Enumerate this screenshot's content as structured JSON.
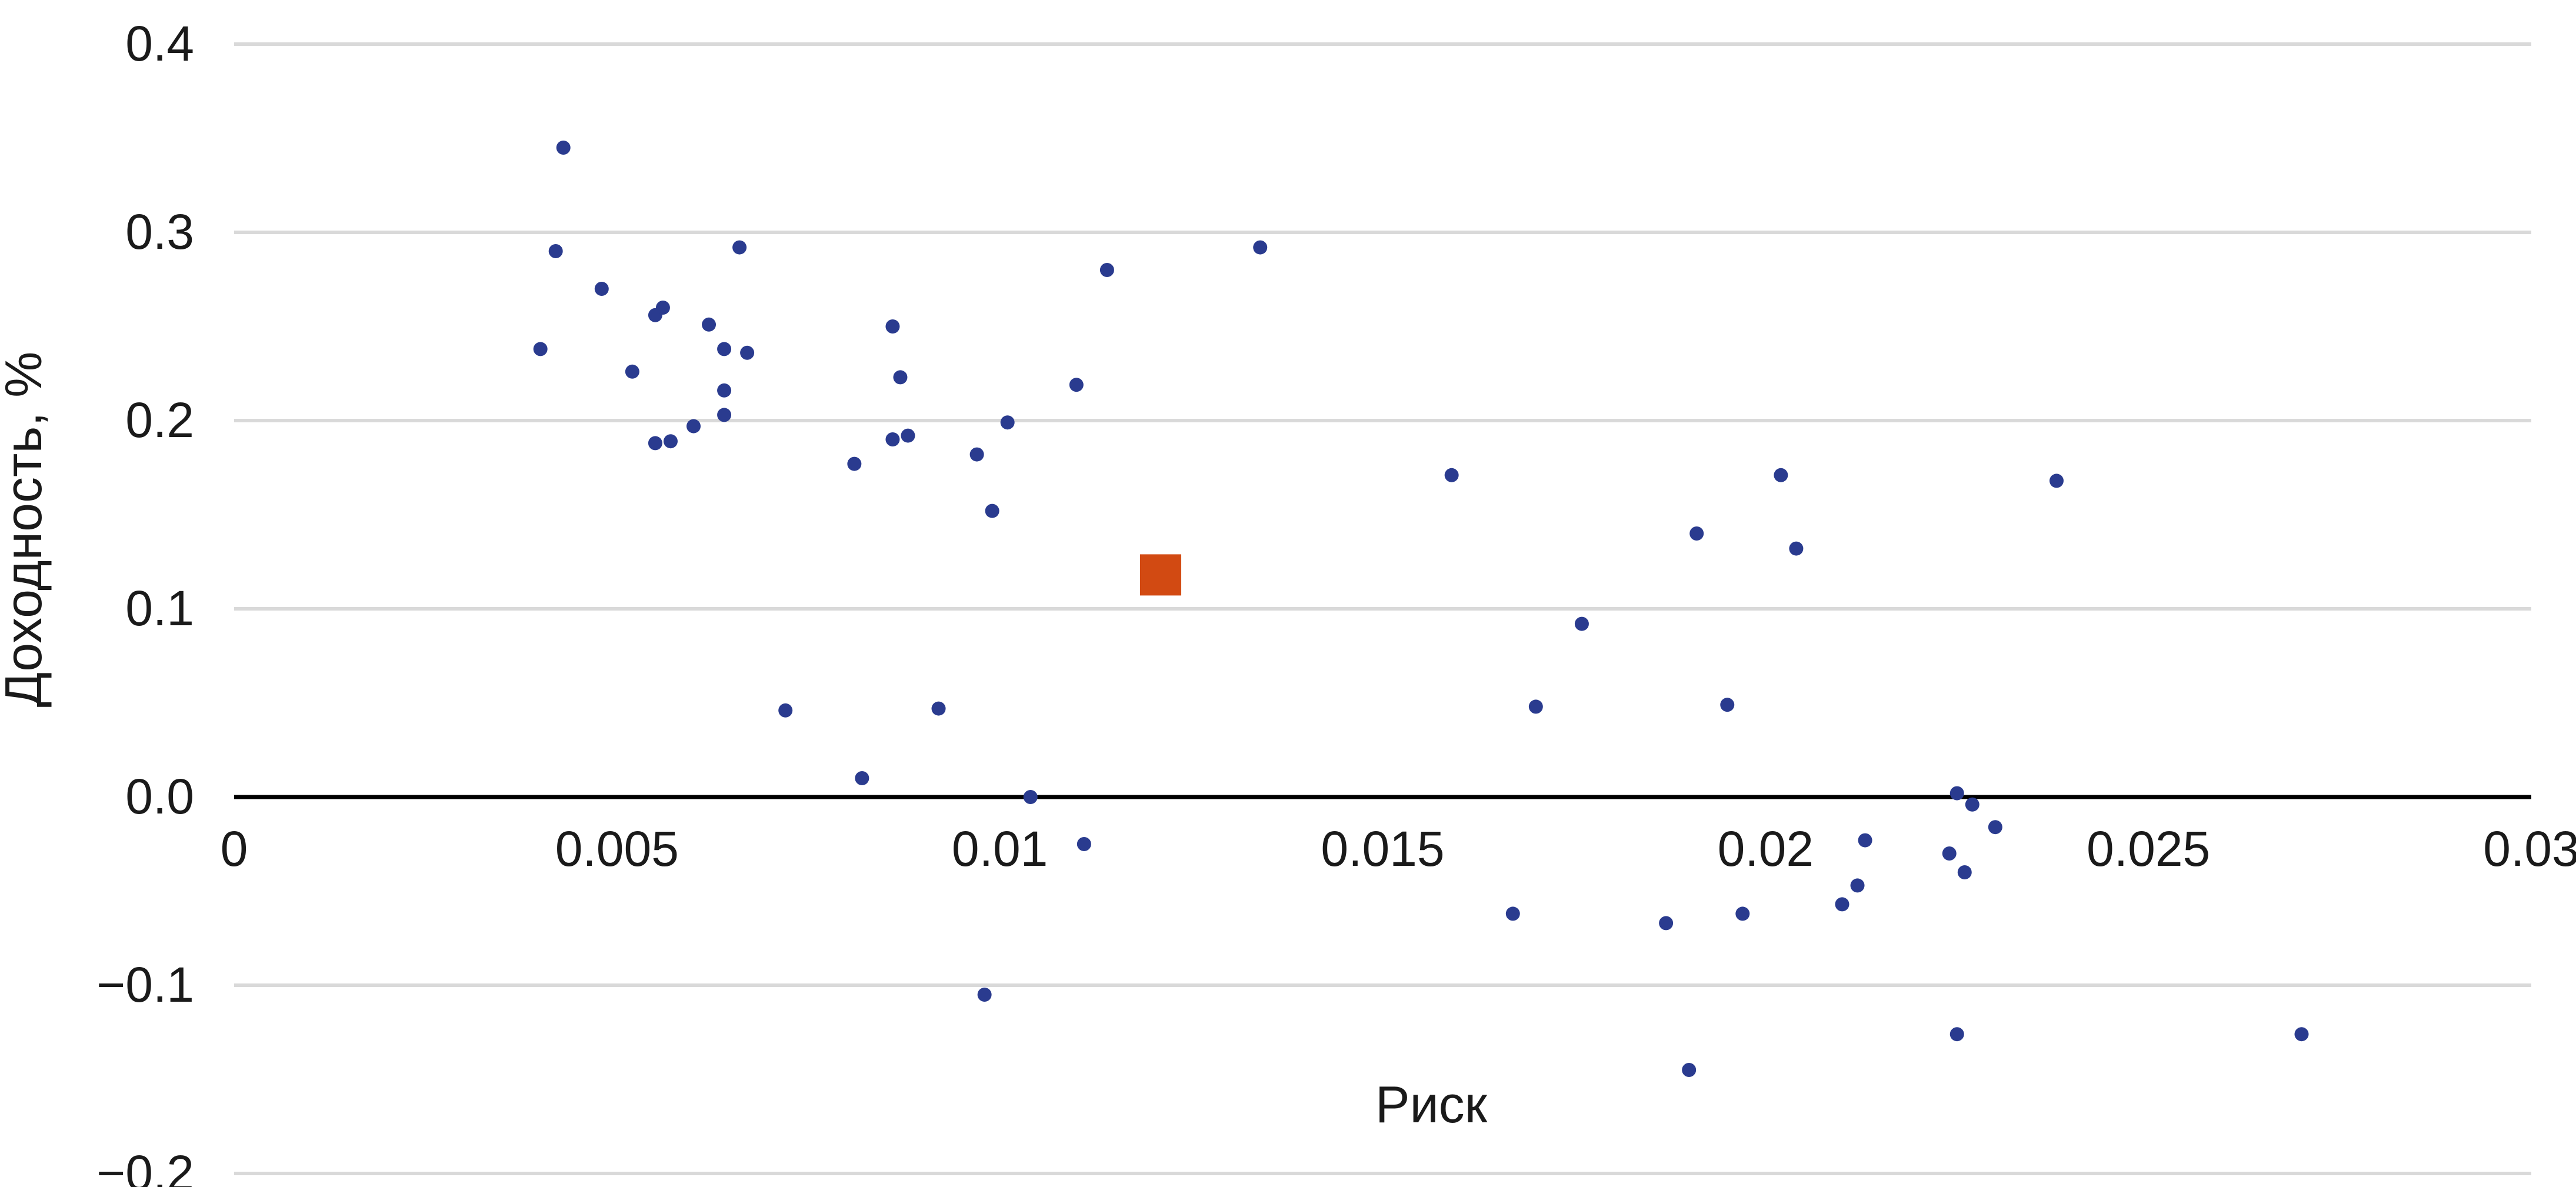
{
  "chart_data": {
    "type": "scatter",
    "xlabel": "Риск",
    "ylabel": "Доходность, %",
    "xlim": [
      0,
      0.03
    ],
    "ylim": [
      -0.2,
      0.4
    ],
    "x_ticks": [
      "0",
      "0.005",
      "0.01",
      "0.015",
      "0.02",
      "0.025",
      "0.03"
    ],
    "y_ticks": [
      "0.4",
      "0.3",
      "0.2",
      "0.1",
      "0.0",
      "−0.1",
      "−0.2"
    ],
    "x_tick_values": [
      0,
      0.005,
      0.01,
      0.015,
      0.02,
      0.025,
      0.03
    ],
    "y_tick_values": [
      0.4,
      0.3,
      0.2,
      0.1,
      0.0,
      -0.1,
      -0.2
    ],
    "grid": true,
    "colors": {
      "points": "#2a3b8f",
      "highlight": "#d24a12",
      "grid": "#d9d9d9",
      "zero_line": "#000000"
    },
    "series": [
      {
        "marker": "circle",
        "points": [
          {
            "x": 0.0043,
            "y": 0.345
          },
          {
            "x": 0.0042,
            "y": 0.29
          },
          {
            "x": 0.0048,
            "y": 0.27
          },
          {
            "x": 0.0055,
            "y": 0.256
          },
          {
            "x": 0.0056,
            "y": 0.26
          },
          {
            "x": 0.004,
            "y": 0.238
          },
          {
            "x": 0.0052,
            "y": 0.226
          },
          {
            "x": 0.0055,
            "y": 0.188
          },
          {
            "x": 0.0057,
            "y": 0.189
          },
          {
            "x": 0.006,
            "y": 0.197
          },
          {
            "x": 0.0062,
            "y": 0.251
          },
          {
            "x": 0.0064,
            "y": 0.238
          },
          {
            "x": 0.0066,
            "y": 0.292
          },
          {
            "x": 0.0067,
            "y": 0.236
          },
          {
            "x": 0.0064,
            "y": 0.216
          },
          {
            "x": 0.0064,
            "y": 0.203
          },
          {
            "x": 0.0072,
            "y": 0.046
          },
          {
            "x": 0.0081,
            "y": 0.177
          },
          {
            "x": 0.0086,
            "y": 0.25
          },
          {
            "x": 0.0087,
            "y": 0.223
          },
          {
            "x": 0.0086,
            "y": 0.19
          },
          {
            "x": 0.0088,
            "y": 0.192
          },
          {
            "x": 0.0082,
            "y": 0.01
          },
          {
            "x": 0.0092,
            "y": 0.047
          },
          {
            "x": 0.0097,
            "y": 0.182
          },
          {
            "x": 0.0101,
            "y": 0.199
          },
          {
            "x": 0.0099,
            "y": 0.152
          },
          {
            "x": 0.011,
            "y": 0.219
          },
          {
            "x": 0.0114,
            "y": 0.28
          },
          {
            "x": 0.0134,
            "y": 0.292
          },
          {
            "x": 0.0104,
            "y": 0.0
          },
          {
            "x": 0.0111,
            "y": -0.025
          },
          {
            "x": 0.0098,
            "y": -0.105
          },
          {
            "x": 0.0159,
            "y": 0.171
          },
          {
            "x": 0.017,
            "y": 0.048
          },
          {
            "x": 0.0176,
            "y": 0.092
          },
          {
            "x": 0.0167,
            "y": -0.062
          },
          {
            "x": 0.0187,
            "y": -0.067
          },
          {
            "x": 0.0191,
            "y": 0.14
          },
          {
            "x": 0.0195,
            "y": 0.049
          },
          {
            "x": 0.0202,
            "y": 0.171
          },
          {
            "x": 0.0204,
            "y": 0.132
          },
          {
            "x": 0.0197,
            "y": -0.062
          },
          {
            "x": 0.019,
            "y": -0.145
          },
          {
            "x": 0.021,
            "y": -0.057
          },
          {
            "x": 0.0212,
            "y": -0.047
          },
          {
            "x": 0.0213,
            "y": -0.023
          },
          {
            "x": 0.0224,
            "y": -0.03
          },
          {
            "x": 0.0225,
            "y": 0.002
          },
          {
            "x": 0.0227,
            "y": -0.004
          },
          {
            "x": 0.0226,
            "y": -0.04
          },
          {
            "x": 0.023,
            "y": -0.016
          },
          {
            "x": 0.0225,
            "y": -0.126
          },
          {
            "x": 0.0238,
            "y": 0.168
          },
          {
            "x": 0.027,
            "y": -0.126
          }
        ]
      },
      {
        "marker": "square",
        "highlight": true,
        "points": [
          {
            "x": 0.0121,
            "y": 0.118
          }
        ]
      }
    ]
  }
}
